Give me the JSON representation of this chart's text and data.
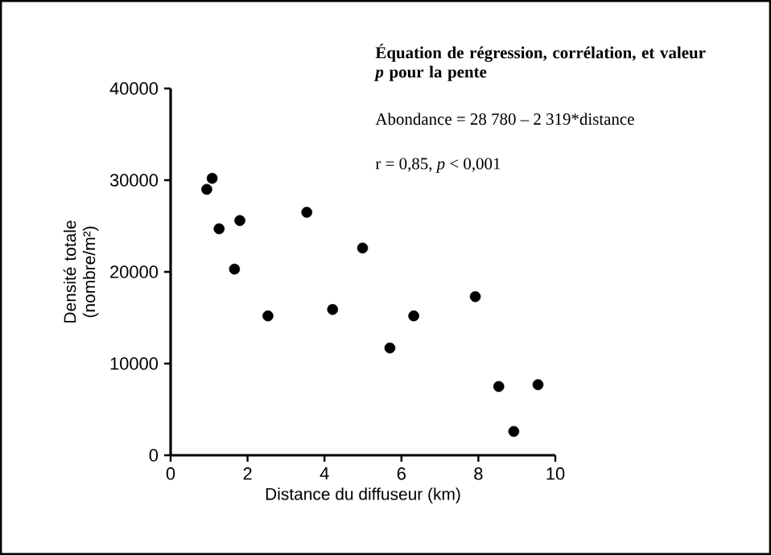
{
  "chart_data": {
    "type": "scatter",
    "title": "Équation de régression, corrélation, et valeur *p* pour la pente",
    "xlabel": "Distance du diffuseur (km)",
    "ylabel": "Densité totale (nombre/m²)",
    "annotations": [
      "Abondance = 28 780 – 2 319*distance",
      "r = 0,85, *p* < 0,001"
    ],
    "x": [
      0.94,
      1.08,
      1.26,
      1.66,
      1.8,
      2.53,
      3.54,
      4.21,
      4.99,
      5.7,
      6.32,
      7.92,
      8.53,
      8.92,
      9.55
    ],
    "values": [
      29000,
      30200,
      24700,
      20300,
      25600,
      15200,
      26500,
      15900,
      22600,
      11700,
      15200,
      17300,
      7500,
      2600,
      7700
    ],
    "color": "#000000",
    "marker": "circle",
    "xlim": [
      0,
      10
    ],
    "ylim": [
      0,
      40000
    ],
    "xticks": [
      0,
      2,
      4,
      6,
      8,
      10
    ],
    "yticks": [
      0,
      10000,
      20000,
      30000,
      40000
    ],
    "grid": false,
    "legend": false
  }
}
